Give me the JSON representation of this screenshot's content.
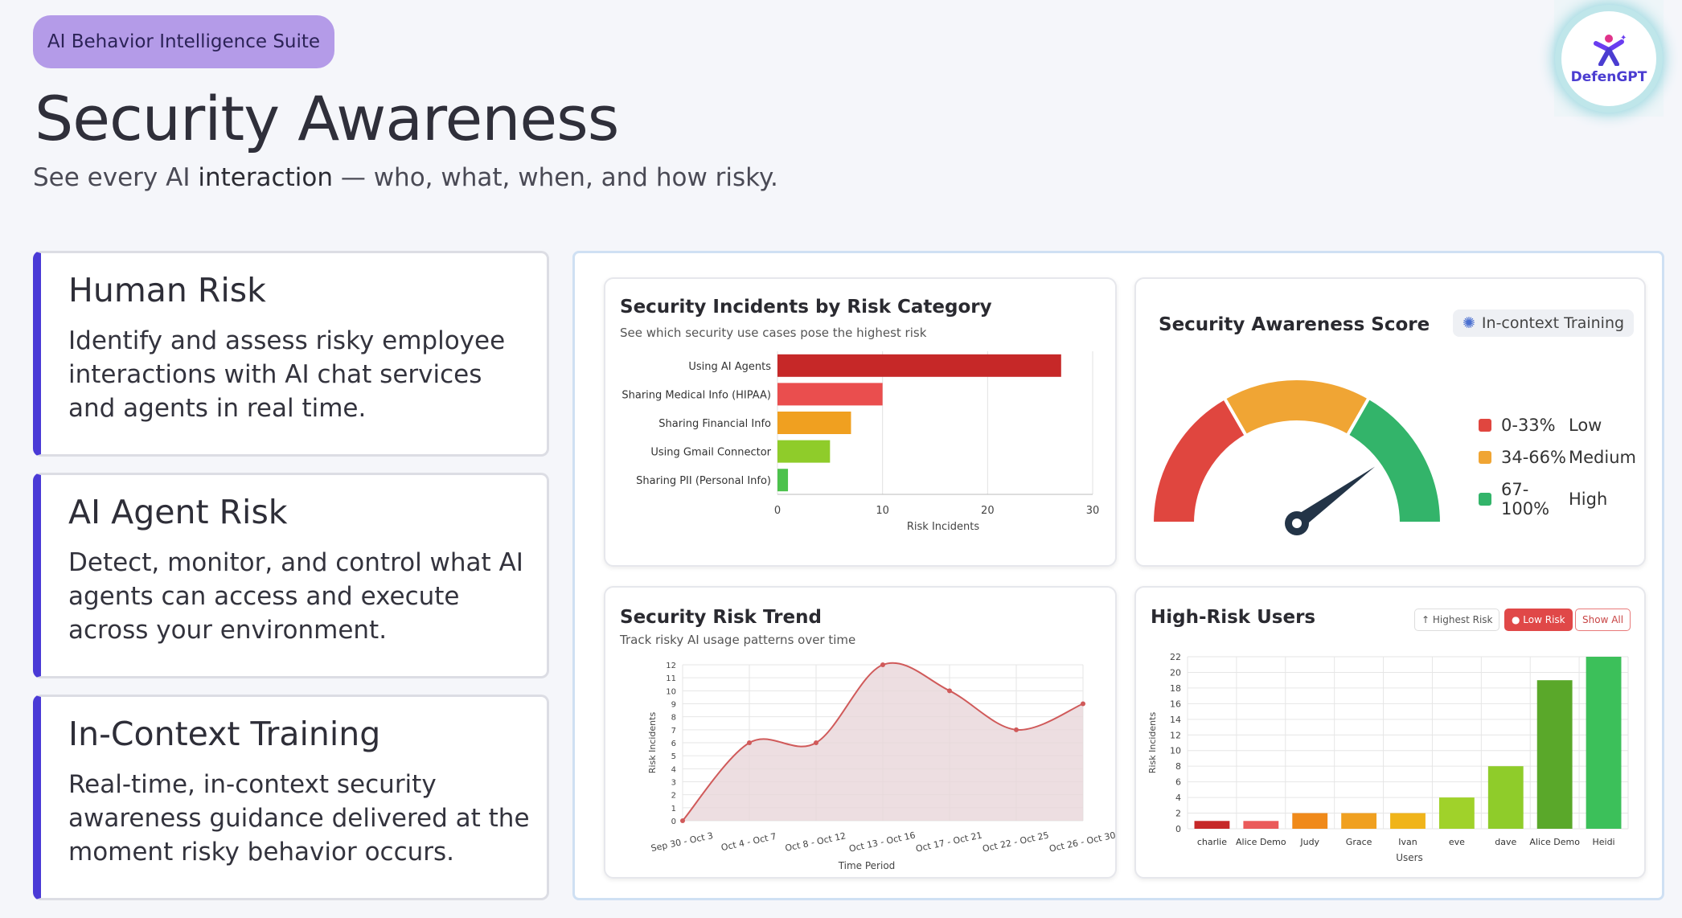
{
  "header": {
    "badge": "AI Behavior Intelligence Suite",
    "title": "Security Awareness",
    "subtitle_before": "See every AI ",
    "subtitle_bold": "interaction",
    "subtitle_after": " — who, what, when, and how risky.",
    "logo_text": "DefenGPT"
  },
  "cards": [
    {
      "title": "Human Risk",
      "text": "Identify and assess risky employee interactions with AI chat services and agents in real time."
    },
    {
      "title": "AI Agent Risk",
      "text": "Detect, monitor, and control what AI agents can access and execute across your environment."
    },
    {
      "title": "In-Context Training",
      "text": "Real-time, in-context security awareness guidance delivered at the moment risky behavior occurs."
    }
  ],
  "panels": {
    "incidents": {
      "title": "Security Incidents by Risk Category",
      "subtitle": "See which security use cases pose the highest risk"
    },
    "score": {
      "title": "Security Awareness Score",
      "training_pill": "In-context Training",
      "legend": [
        {
          "range": "0-33%",
          "label": "Low",
          "color": "#e0463f"
        },
        {
          "range": "34-66%",
          "label": "Medium",
          "color": "#f0a534"
        },
        {
          "range": "67-100%",
          "label": "High",
          "color": "#33b46a"
        }
      ],
      "needle_value": 0.8
    },
    "trend": {
      "title": "Security Risk Trend",
      "subtitle": "Track risky AI usage patterns over time"
    },
    "users": {
      "title": "High-Risk Users",
      "buttons": {
        "highest": "Highest Risk",
        "low": "Low Risk",
        "all": "Show All"
      }
    }
  },
  "chart_data": [
    {
      "type": "bar",
      "orientation": "horizontal",
      "title": "Security Incidents by Risk Category",
      "categories": [
        "Using AI Agents",
        "Sharing Medical Info (HIPAA)",
        "Sharing Financial Info",
        "Using Gmail Connector",
        "Sharing PII (Personal Info)"
      ],
      "values": [
        27,
        10,
        7,
        5,
        1
      ],
      "colors": [
        "#c62828",
        "#ea4e4e",
        "#f0a020",
        "#8fcc2a",
        "#4cc24c"
      ],
      "xlabel": "Risk Incidents",
      "xlim": [
        0,
        30
      ],
      "xticks": [
        0,
        10,
        20,
        30
      ],
      "grid": true
    },
    {
      "type": "area",
      "title": "Security Risk Trend",
      "categories": [
        "Sep 30 - Oct 3",
        "Oct 4 - Oct 7",
        "Oct 8 - Oct 12",
        "Oct 13 - Oct 16",
        "Oct 17 - Oct 21",
        "Oct 22 - Oct 25",
        "Oct 26 - Oct 30"
      ],
      "values": [
        0,
        6,
        6,
        12,
        10,
        7,
        9
      ],
      "xlabel": "Time Period",
      "ylabel": "Risk Incidents",
      "ylim": [
        0,
        12
      ],
      "yticks": [
        0,
        1,
        2,
        3,
        4,
        5,
        6,
        7,
        8,
        9,
        10,
        11,
        12
      ],
      "line_color": "#d05a5a",
      "grid": true
    },
    {
      "type": "bar",
      "title": "High-Risk Users",
      "categories": [
        "charlie",
        "Alice Demo",
        "Judy",
        "Grace",
        "Ivan",
        "eve",
        "dave",
        "Alice Demo",
        "Heidi"
      ],
      "values": [
        1,
        1,
        2,
        2,
        2,
        4,
        8,
        19,
        22
      ],
      "colors": [
        "#c62828",
        "#ea5a5a",
        "#f08a1a",
        "#f0a020",
        "#f0b41a",
        "#a0d22a",
        "#8fcc2a",
        "#5aa82a",
        "#3cc05a"
      ],
      "xlabel": "Users",
      "ylabel": "Risk Incidents",
      "ylim": [
        0,
        22
      ],
      "yticks": [
        0,
        2,
        4,
        6,
        8,
        10,
        12,
        14,
        16,
        18,
        20,
        22
      ],
      "grid": true
    }
  ]
}
